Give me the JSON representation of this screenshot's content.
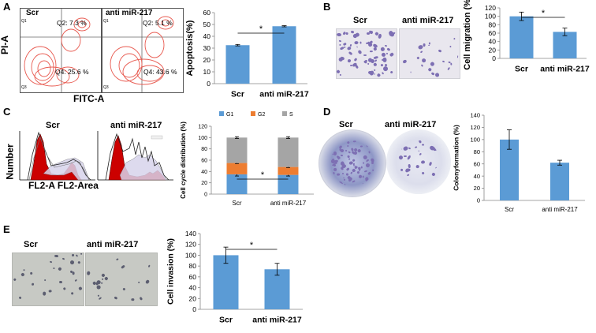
{
  "colors": {
    "bar": "#5b9bd5",
    "g1": "#5b9bd5",
    "g2": "#ed7d31",
    "s": "#a5a5a5",
    "flow_red": "#e85a50",
    "hist_red": "#cc0000"
  },
  "panels": {
    "A": {
      "letter": "A",
      "flow": {
        "scr_label": "Scr",
        "anti_label": "anti miR-217",
        "ylabel": "PI-A",
        "xlabel": "FITC-A",
        "scr_q2": "Q2: 7.3 %",
        "scr_q4": "Q4: 25.6 %",
        "anti_q2": "Q2: 5.1 %",
        "anti_q4": "Q4: 43.6 %",
        "q1": "Q1",
        "q3": "Q3"
      }
    },
    "B": {
      "letter": "B",
      "scr_label": "Scr",
      "anti_label": "anti miR-217"
    },
    "C": {
      "letter": "C",
      "scr_label": "Scr",
      "anti_label": "anti miR-217",
      "ylabel": "Number",
      "xlabel": "FL2-A FL2-Area"
    },
    "D": {
      "letter": "D",
      "scr_label": "Scr",
      "anti_label": "anti miR-217"
    },
    "E": {
      "letter": "E",
      "scr_label": "Scr",
      "anti_label": "anti miR-217"
    }
  },
  "chart_data": [
    {
      "id": "A",
      "type": "bar",
      "categories": [
        "Scr",
        "anti miR-217"
      ],
      "values": [
        32.5,
        48.5
      ],
      "errors": [
        0.6,
        0.5
      ],
      "ylabel": "Apoptosis(%)",
      "ylim": [
        0,
        60
      ],
      "yticks": [
        "0",
        "10",
        "20",
        "30",
        "40",
        "50",
        "60"
      ],
      "significance": "*"
    },
    {
      "id": "B",
      "type": "bar",
      "categories": [
        "Scr",
        "anti miR-217"
      ],
      "values": [
        100,
        63
      ],
      "errors": [
        10,
        9
      ],
      "ylabel": "Cell migration (%)",
      "ylim": [
        0,
        120
      ],
      "yticks": [
        "0",
        "20",
        "40",
        "60",
        "80",
        "100",
        "120"
      ],
      "significance": "*"
    },
    {
      "id": "C",
      "type": "bar",
      "stacked": true,
      "categories": [
        "Scr",
        "anti miR-217"
      ],
      "series": [
        {
          "name": "G1",
          "values": [
            35,
            34
          ],
          "errors": [
            3,
            2
          ]
        },
        {
          "name": "G2",
          "values": [
            20,
            14
          ],
          "errors": [
            1,
            1
          ]
        },
        {
          "name": "S",
          "values": [
            45,
            52
          ],
          "errors": [
            1.5,
            1.5
          ]
        }
      ],
      "ylabel": "Cell cycle distribution (%)",
      "ylim": [
        0,
        120
      ],
      "yticks": [
        "0",
        "20",
        "40",
        "60",
        "80",
        "100",
        "120"
      ],
      "significance": "*"
    },
    {
      "id": "D",
      "type": "bar",
      "categories": [
        "Scr",
        "anti miR-217"
      ],
      "values": [
        100,
        62
      ],
      "errors": [
        16,
        4
      ],
      "ylabel": "Colonyformation (%)",
      "ylim": [
        0,
        140
      ],
      "yticks": [
        "0",
        "20",
        "40",
        "60",
        "80",
        "100",
        "120",
        "140"
      ],
      "significance": ""
    },
    {
      "id": "E",
      "type": "bar",
      "categories": [
        "Scr",
        "anti miR-217"
      ],
      "values": [
        100,
        74
      ],
      "errors": [
        15,
        11
      ],
      "ylabel": "Cell invasion (%)",
      "ylim": [
        0,
        140
      ],
      "yticks": [
        "0",
        "20",
        "40",
        "60",
        "80",
        "100",
        "120",
        "140"
      ],
      "significance": "*"
    }
  ]
}
